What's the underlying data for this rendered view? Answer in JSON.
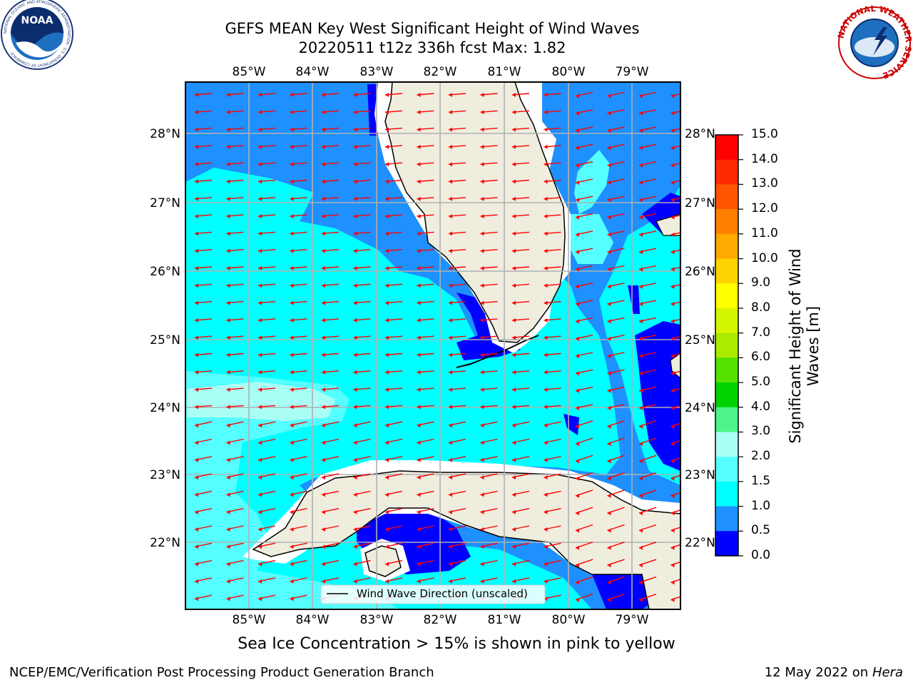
{
  "header": {
    "title_line1": "GEFS MEAN Key West Significant Height of Wind Waves",
    "title_line2": "20220511 t12z 336h fcst   Max: 1.82"
  },
  "logos": {
    "noaa": {
      "text": "NOAA",
      "ring_text": "NATIONAL OCEANIC AND ATMOSPHERIC ADMINISTRATION · U.S. DEPARTMENT OF COMMERCE"
    },
    "nws": {
      "ring_text": "NATIONAL WEATHER SERVICE"
    }
  },
  "map": {
    "lon_labels": [
      "85°W",
      "84°W",
      "83°W",
      "82°W",
      "81°W",
      "80°W",
      "79°W"
    ],
    "lat_labels": [
      "28°N",
      "27°N",
      "26°N",
      "25°N",
      "24°N",
      "23°N",
      "22°N"
    ],
    "legend_label": "Wind Wave Direction (unscaled)",
    "colors": {
      "land": "#efedde",
      "coast": "#000000",
      "arrow": "#ff0000",
      "grid": "#b0b0b0"
    }
  },
  "colorbar": {
    "title": "Significant Height of Wind Waves [m]",
    "ticks": [
      "15.0",
      "14.0",
      "13.0",
      "12.0",
      "11.0",
      "10.0",
      "9.0",
      "8.0",
      "7.0",
      "6.0",
      "5.0",
      "4.0",
      "3.0",
      "2.0",
      "1.5",
      "1.0",
      "0.5",
      "0.0"
    ],
    "colors": [
      "#ff0000",
      "#ff2a00",
      "#ff5500",
      "#ff8000",
      "#ffaa00",
      "#ffd400",
      "#ffff00",
      "#d4f500",
      "#aaeb00",
      "#55e100",
      "#00d200",
      "#4df58a",
      "#aafff5",
      "#55ffff",
      "#00ffff",
      "#1e90ff",
      "#0000ff"
    ]
  },
  "footer": {
    "sea_ice_note": "Sea Ice Concentration > 15% is shown in pink to yellow",
    "credit_left": "NCEP/EMC/Verification Post Processing Product Generation Branch",
    "credit_date": "12 May 2022 on",
    "credit_machine": "Hera"
  }
}
